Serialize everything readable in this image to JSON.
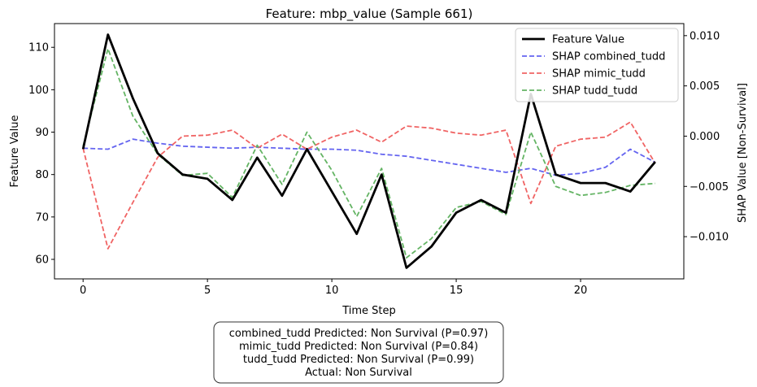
{
  "chart_data": {
    "type": "line",
    "title": "Feature: mbp_value (Sample 661)",
    "xlabel": "Time Step",
    "ylabel_left": "Feature Value",
    "ylabel_right": "SHAP Value [Non-Survival]",
    "x": [
      0,
      1,
      2,
      3,
      4,
      5,
      6,
      7,
      8,
      9,
      10,
      11,
      12,
      13,
      14,
      15,
      16,
      17,
      18,
      19,
      20,
      21,
      22,
      23
    ],
    "xlim": [
      -1.15,
      24.15
    ],
    "xticks": [
      0,
      5,
      10,
      15,
      20
    ],
    "ylim_left": [
      55.4,
      115.6
    ],
    "yticks_left": [
      60,
      70,
      80,
      90,
      100,
      110
    ],
    "ylim_right": [
      -0.0142,
      0.0112
    ],
    "yticks_right": [
      -0.01,
      -0.005,
      0.0,
      0.005,
      0.01
    ],
    "yticklabels_right": [
      "−0.010",
      "−0.005",
      "0.000",
      "0.005",
      "0.010"
    ],
    "legend_position": "upper right",
    "series": [
      {
        "name": "Feature Value",
        "axis": "left",
        "color": "#000000",
        "dashed": false,
        "values": [
          86,
          113,
          98,
          85,
          80,
          79,
          74,
          84,
          75,
          86,
          76,
          66,
          80,
          58,
          63,
          71,
          74,
          71,
          99,
          80,
          78,
          78,
          76,
          83
        ]
      },
      {
        "name": "SHAP combined_tudd",
        "axis": "right",
        "color": "#6464f0",
        "dashed": true,
        "values": [
          -0.0012,
          -0.0013,
          -0.0003,
          -0.0007,
          -0.001,
          -0.0011,
          -0.0012,
          -0.0011,
          -0.0012,
          -0.0013,
          -0.0013,
          -0.0014,
          -0.0018,
          -0.002,
          -0.0024,
          -0.0028,
          -0.0032,
          -0.0036,
          -0.0032,
          -0.0039,
          -0.0037,
          -0.0031,
          -0.0013,
          -0.0026
        ]
      },
      {
        "name": "SHAP mimic_tudd",
        "axis": "right",
        "color": "#f06464",
        "dashed": true,
        "values": [
          -0.0012,
          -0.0112,
          -0.0066,
          -0.0021,
          0.0,
          0.0001,
          0.0006,
          -0.0012,
          0.0002,
          -0.0013,
          -0.0001,
          0.0006,
          -0.0006,
          0.001,
          0.0008,
          0.0003,
          0.0001,
          0.0006,
          -0.0067,
          -0.001,
          -0.0003,
          -0.0001,
          0.0014,
          -0.0027
        ]
      },
      {
        "name": "SHAP tudd_tudd",
        "axis": "right",
        "color": "#64b464",
        "dashed": true,
        "values": [
          -0.001,
          0.0087,
          0.002,
          -0.0018,
          -0.0039,
          -0.0037,
          -0.0061,
          -0.0009,
          -0.0048,
          0.0004,
          -0.0034,
          -0.008,
          -0.0032,
          -0.0121,
          -0.0102,
          -0.0071,
          -0.0065,
          -0.0078,
          0.0004,
          -0.005,
          -0.0059,
          -0.0056,
          -0.0049,
          -0.0047
        ]
      }
    ]
  },
  "info_box": {
    "line1": "combined_tudd Predicted: Non Survival (P=0.97)",
    "line2": "mimic_tudd Predicted: Non Survival (P=0.84)",
    "line3": "tudd_tudd Predicted: Non Survival (P=0.99)",
    "line4": "Actual: Non Survival"
  }
}
